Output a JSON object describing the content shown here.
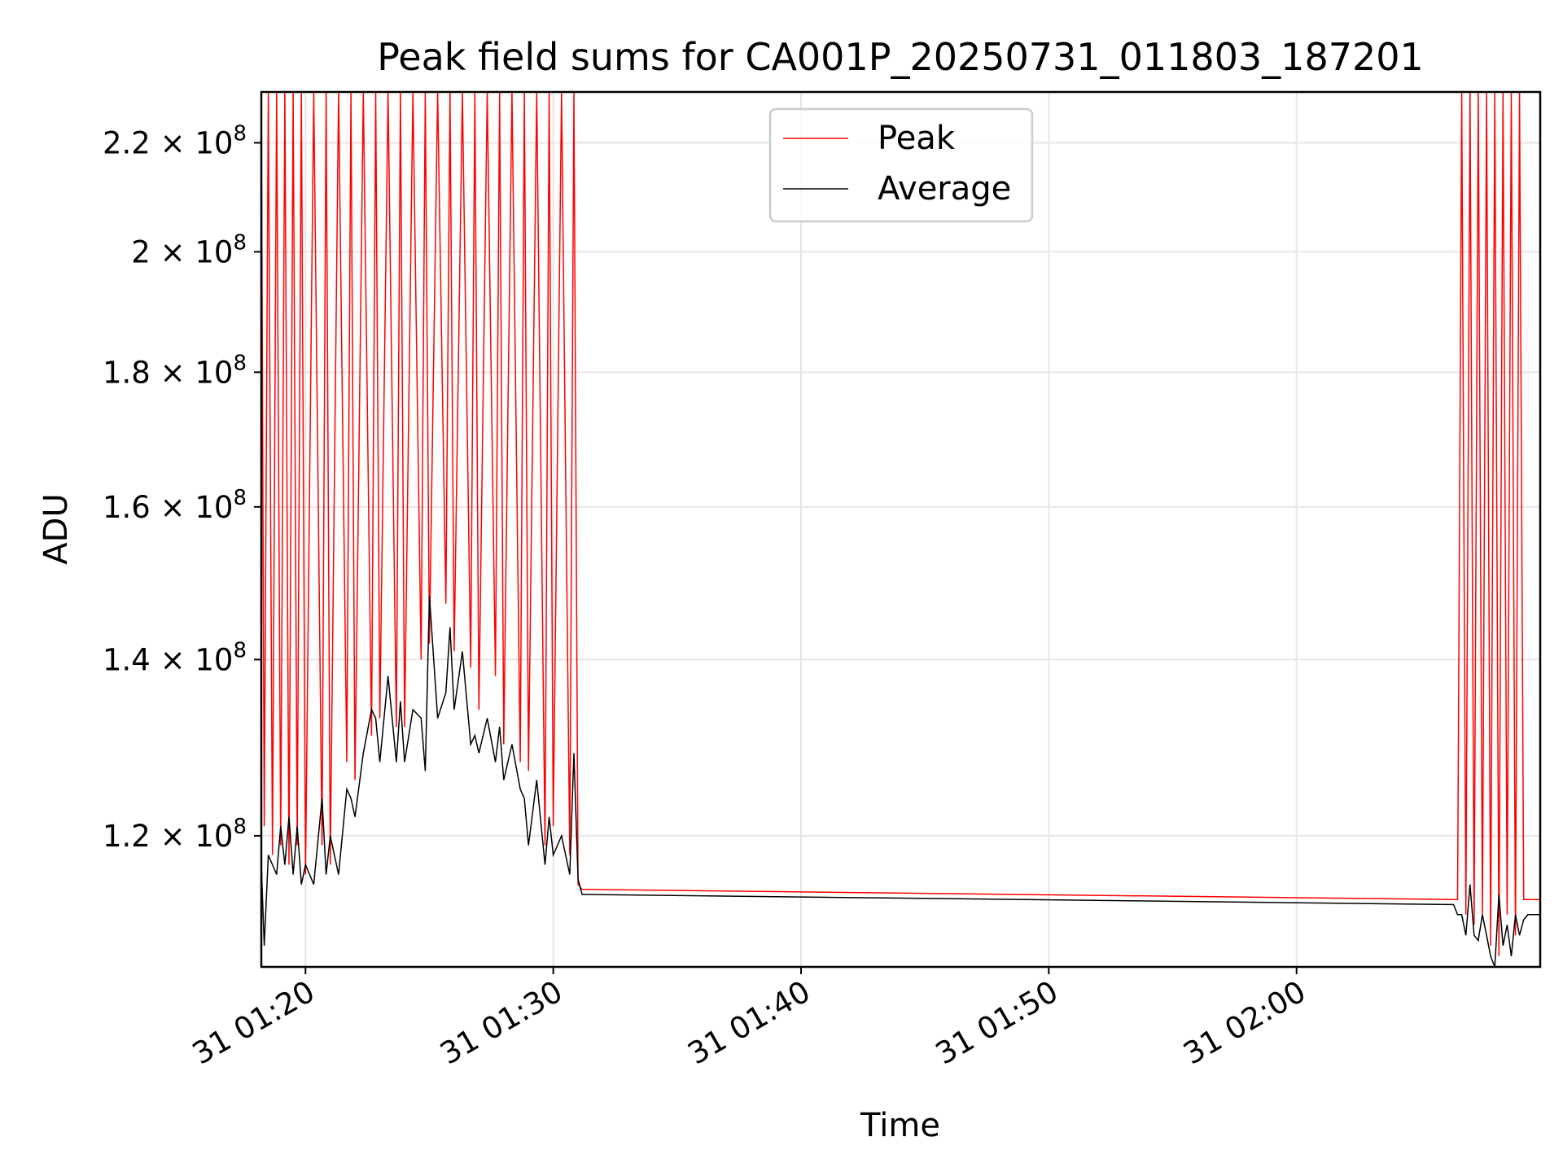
{
  "chart_data": {
    "type": "line",
    "title": "Peak field sums for CA001P_20250731_011803_187201",
    "xlabel": "Time",
    "ylabel": "ADU",
    "x_type": "time",
    "date": "2025-07-31",
    "xlim": [
      "01:18:13",
      "02:09:50"
    ],
    "ylim": [
      107000000,
      230000000
    ],
    "y_scale": "log",
    "grid": true,
    "legend_position": "upper center",
    "x_ticks": [
      {
        "value": "01:20:00",
        "label": "31 01:20"
      },
      {
        "value": "01:30:00",
        "label": "31 01:30"
      },
      {
        "value": "01:40:00",
        "label": "31 01:40"
      },
      {
        "value": "01:50:00",
        "label": "31 01:50"
      },
      {
        "value": "02:00:00",
        "label": "31 02:00"
      }
    ],
    "y_ticks": [
      {
        "value": 120000000,
        "mantissa": "1.2",
        "exp": "8"
      },
      {
        "value": 140000000,
        "mantissa": "1.4",
        "exp": "8"
      },
      {
        "value": 160000000,
        "mantissa": "1.6",
        "exp": "8"
      },
      {
        "value": 180000000,
        "mantissa": "1.8",
        "exp": "8"
      },
      {
        "value": 200000000,
        "mantissa": "2",
        "exp": "8"
      },
      {
        "value": 220000000,
        "mantissa": "2.2",
        "exp": "8"
      }
    ],
    "series": [
      {
        "name": "Peak",
        "color": "#ff0000",
        "x": [
          "01:18:13",
          "01:18:20",
          "01:18:30",
          "01:18:40",
          "01:18:50",
          "01:19:00",
          "01:19:10",
          "01:19:20",
          "01:19:30",
          "01:19:40",
          "01:19:50",
          "01:20:00",
          "01:20:20",
          "01:20:40",
          "01:20:50",
          "01:21:00",
          "01:21:20",
          "01:21:40",
          "01:21:50",
          "01:22:00",
          "01:22:20",
          "01:22:40",
          "01:22:50",
          "01:23:00",
          "01:23:20",
          "01:23:40",
          "01:23:50",
          "01:24:00",
          "01:24:20",
          "01:24:40",
          "01:24:50",
          "01:25:00",
          "01:25:20",
          "01:25:40",
          "01:25:50",
          "01:26:00",
          "01:26:20",
          "01:26:40",
          "01:26:50",
          "01:27:00",
          "01:27:20",
          "01:27:40",
          "01:27:50",
          "01:28:00",
          "01:28:20",
          "01:28:40",
          "01:28:50",
          "01:29:00",
          "01:29:20",
          "01:29:40",
          "01:29:50",
          "01:30:00",
          "01:30:20",
          "01:30:40",
          "01:30:50",
          "01:31:00",
          "01:31:10",
          "01:31:20",
          "02:06:20",
          "02:06:30",
          "02:06:40",
          "02:06:50",
          "02:07:00",
          "02:07:10",
          "02:07:20",
          "02:07:30",
          "02:07:40",
          "02:07:50",
          "02:08:00",
          "02:08:10",
          "02:08:20",
          "02:08:30",
          "02:08:40",
          "02:08:50",
          "02:09:00",
          "02:09:10",
          "02:09:20",
          "02:09:50"
        ],
        "values": [
          230000000,
          121000000,
          230000000,
          118000000,
          230000000,
          119000000,
          230000000,
          117000000,
          230000000,
          119000000,
          230000000,
          116000000,
          230000000,
          119000000,
          230000000,
          117000000,
          230000000,
          128000000,
          230000000,
          126000000,
          230000000,
          131000000,
          230000000,
          133000000,
          230000000,
          132000000,
          230000000,
          132000000,
          230000000,
          140000000,
          230000000,
          142000000,
          230000000,
          147000000,
          230000000,
          141000000,
          230000000,
          139000000,
          230000000,
          134000000,
          230000000,
          138000000,
          230000000,
          130000000,
          230000000,
          128000000,
          230000000,
          127000000,
          230000000,
          119000000,
          230000000,
          121000000,
          230000000,
          118000000,
          230000000,
          115000000,
          114500000,
          114500000,
          113500000,
          113500000,
          230000000,
          112000000,
          230000000,
          111000000,
          230000000,
          112000000,
          230000000,
          109000000,
          230000000,
          108000000,
          230000000,
          112000000,
          230000000,
          110000000,
          230000000,
          113500000,
          113500000,
          113500000
        ]
      },
      {
        "name": "Average",
        "color": "#000000",
        "x": [
          "01:18:13",
          "01:18:20",
          "01:18:30",
          "01:18:40",
          "01:18:50",
          "01:19:00",
          "01:19:10",
          "01:19:20",
          "01:19:30",
          "01:19:40",
          "01:19:50",
          "01:20:00",
          "01:20:20",
          "01:20:40",
          "01:20:50",
          "01:21:00",
          "01:21:20",
          "01:21:40",
          "01:21:50",
          "01:22:00",
          "01:22:20",
          "01:22:40",
          "01:22:50",
          "01:23:00",
          "01:23:20",
          "01:23:40",
          "01:23:50",
          "01:24:00",
          "01:24:20",
          "01:24:40",
          "01:24:50",
          "01:25:00",
          "01:25:20",
          "01:25:40",
          "01:25:50",
          "01:26:00",
          "01:26:20",
          "01:26:40",
          "01:26:50",
          "01:27:00",
          "01:27:20",
          "01:27:40",
          "01:27:50",
          "01:28:00",
          "01:28:20",
          "01:28:40",
          "01:28:50",
          "01:29:00",
          "01:29:20",
          "01:29:40",
          "01:29:50",
          "01:30:00",
          "01:30:20",
          "01:30:40",
          "01:30:50",
          "01:31:00",
          "01:31:10",
          "01:31:20",
          "02:06:20",
          "02:06:30",
          "02:06:40",
          "02:06:50",
          "02:07:00",
          "02:07:10",
          "02:07:20",
          "02:07:30",
          "02:07:40",
          "02:07:50",
          "02:08:00",
          "02:08:10",
          "02:08:20",
          "02:08:30",
          "02:08:40",
          "02:08:50",
          "02:09:00",
          "02:09:10",
          "02:09:20",
          "02:09:50"
        ],
        "values": [
          117000000,
          109000000,
          118000000,
          117000000,
          116000000,
          121000000,
          117000000,
          122000000,
          116000000,
          121000000,
          115000000,
          117000000,
          115000000,
          124000000,
          116000000,
          120000000,
          116000000,
          125000000,
          124000000,
          122000000,
          129000000,
          134000000,
          133000000,
          128000000,
          138000000,
          128000000,
          135000000,
          128000000,
          134000000,
          133000000,
          127000000,
          148000000,
          133000000,
          136000000,
          144000000,
          134000000,
          141000000,
          130000000,
          131000000,
          129000000,
          133000000,
          128000000,
          132000000,
          126000000,
          130000000,
          125000000,
          124000000,
          119000000,
          126000000,
          117000000,
          122000000,
          118000000,
          120000000,
          116000000,
          129000000,
          115500000,
          114000000,
          114000000,
          113000000,
          112000000,
          112000000,
          110000000,
          115000000,
          110000000,
          109500000,
          112000000,
          110000000,
          108000000,
          107000000,
          114000000,
          109000000,
          111000000,
          108000000,
          112000000,
          110000000,
          111500000,
          112000000,
          112000000
        ]
      }
    ]
  }
}
